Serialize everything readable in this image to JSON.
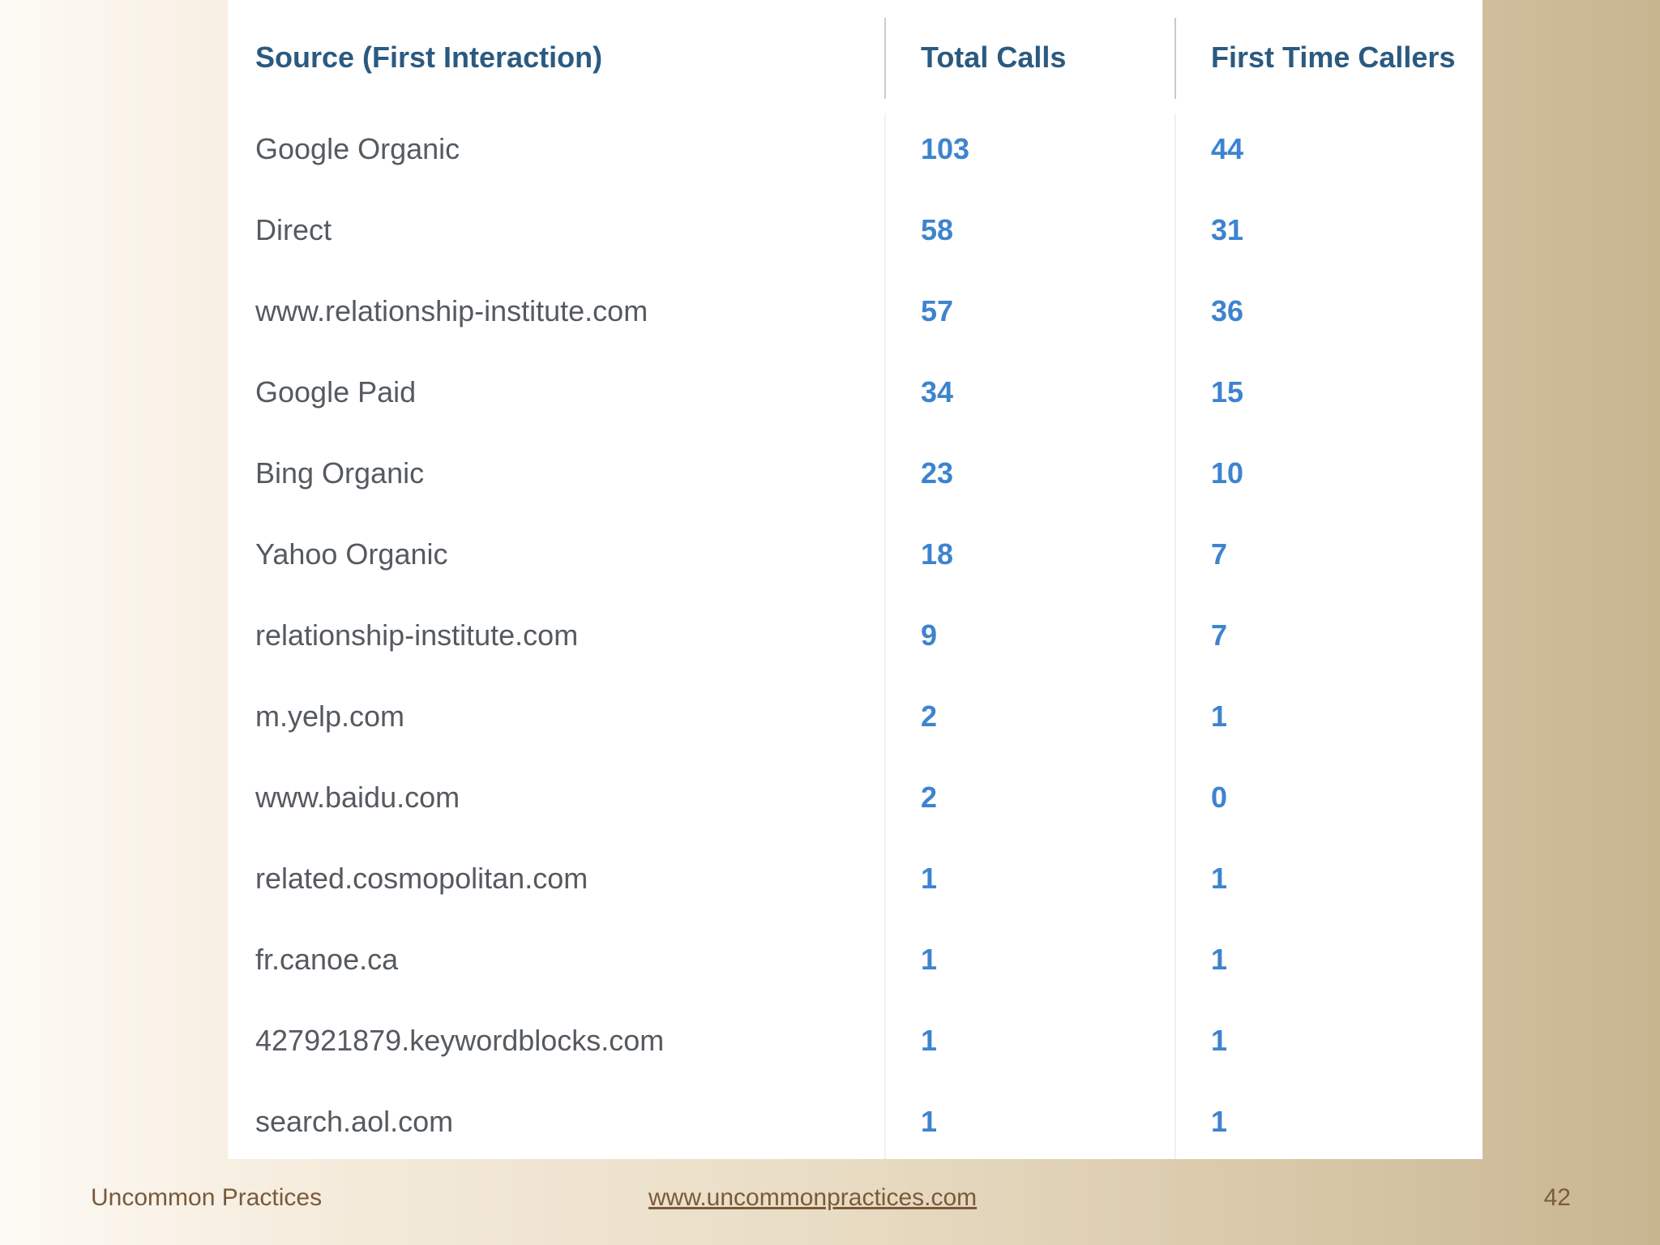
{
  "table": {
    "headers": {
      "source": "Source (First Interaction)",
      "total_calls": "Total Calls",
      "first_time_callers": "First Time Callers"
    },
    "rows": [
      {
        "source": "Google Organic",
        "total_calls": "103",
        "first_time_callers": "44"
      },
      {
        "source": "Direct",
        "total_calls": "58",
        "first_time_callers": "31"
      },
      {
        "source": "www.relationship-institute.com",
        "total_calls": "57",
        "first_time_callers": "36"
      },
      {
        "source": "Google Paid",
        "total_calls": "34",
        "first_time_callers": "15"
      },
      {
        "source": "Bing Organic",
        "total_calls": "23",
        "first_time_callers": "10"
      },
      {
        "source": "Yahoo Organic",
        "total_calls": "18",
        "first_time_callers": "7"
      },
      {
        "source": "relationship-institute.com",
        "total_calls": "9",
        "first_time_callers": "7"
      },
      {
        "source": "m.yelp.com",
        "total_calls": "2",
        "first_time_callers": "1"
      },
      {
        "source": "www.baidu.com",
        "total_calls": "2",
        "first_time_callers": "0"
      },
      {
        "source": "related.cosmopolitan.com",
        "total_calls": "1",
        "first_time_callers": "1"
      },
      {
        "source": "fr.canoe.ca",
        "total_calls": "1",
        "first_time_callers": "1"
      },
      {
        "source": "427921879.keywordblocks.com",
        "total_calls": "1",
        "first_time_callers": "1"
      },
      {
        "source": "search.aol.com",
        "total_calls": "1",
        "first_time_callers": "1"
      }
    ]
  },
  "footer": {
    "left": "Uncommon Practices",
    "center": "www.uncommonpractices.com",
    "right": "42"
  },
  "colors": {
    "header_text": "#2b5a80",
    "source_text": "#555a60",
    "number_text": "#3d84cf",
    "footer_text": "#7a5a3a"
  }
}
